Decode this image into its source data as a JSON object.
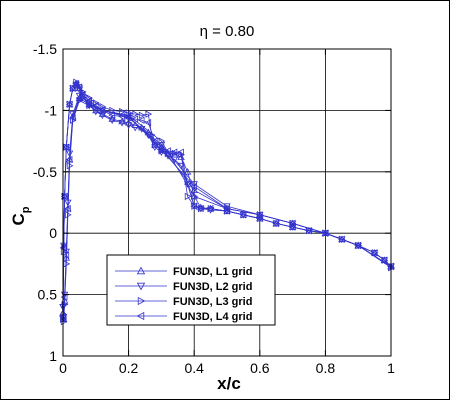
{
  "chart_data": {
    "type": "line",
    "title": "η = 0.80",
    "xlabel": "x/c",
    "ylabel": "C",
    "ylabel_subscript": "p",
    "xlim": [
      0,
      1
    ],
    "ylim": [
      1,
      -1.5
    ],
    "y_inverted": true,
    "grid": true,
    "legend_position": "bottom-left",
    "x_ticks": [
      "0",
      "0.2",
      "0.4",
      "0.6",
      "0.8",
      "1"
    ],
    "x_tick_values": [
      0,
      0.2,
      0.4,
      0.6,
      0.8,
      1
    ],
    "y_ticks": [
      "-1.5",
      "-1",
      "-0.5",
      "0",
      "0.5",
      "1"
    ],
    "y_tick_values": [
      -1.5,
      -1,
      -0.5,
      0,
      0.5,
      1
    ],
    "series_color": "#3333cc",
    "series": [
      {
        "name": "FUN3D, L1 grid",
        "marker": "triangle-up",
        "upper": {
          "x": [
            0,
            0.002,
            0.005,
            0.01,
            0.02,
            0.03,
            0.04,
            0.05,
            0.06,
            0.08,
            0.1,
            0.12,
            0.15,
            0.18,
            0.2,
            0.22,
            0.24,
            0.26,
            0.28,
            0.3,
            0.32,
            0.34,
            0.36,
            0.38,
            0.4,
            0.42,
            0.45,
            0.5,
            0.55,
            0.6,
            0.65,
            0.7,
            0.75,
            0.8,
            0.85,
            0.9,
            0.95,
            0.98,
            1.0
          ],
          "y": [
            0.65,
            0.1,
            -0.3,
            -0.7,
            -1.05,
            -1.18,
            -1.22,
            -1.18,
            -1.12,
            -1.05,
            -1.0,
            -0.97,
            -0.93,
            -0.91,
            -0.9,
            -0.88,
            -0.86,
            -0.82,
            -0.72,
            -0.68,
            -0.65,
            -0.64,
            -0.62,
            -0.5,
            -0.3,
            -0.21,
            -0.2,
            -0.18,
            -0.15,
            -0.12,
            -0.08,
            -0.05,
            -0.02,
            0.0,
            0.05,
            0.1,
            0.16,
            0.22,
            0.27
          ]
        },
        "lower": {
          "x": [
            0,
            0.002,
            0.005,
            0.01,
            0.015,
            0.02,
            0.03,
            0.05,
            0.08,
            0.12,
            0.2,
            0.3,
            0.4,
            0.5,
            0.6,
            0.7,
            0.8,
            0.9,
            1.0
          ],
          "y": [
            0.65,
            0.7,
            0.55,
            0.2,
            -0.2,
            -0.6,
            -0.95,
            -1.1,
            -1.05,
            -1.0,
            -0.95,
            -0.7,
            -0.35,
            -0.2,
            -0.15,
            -0.08,
            0.0,
            0.1,
            0.27
          ]
        }
      },
      {
        "name": "FUN3D, L2 grid",
        "marker": "triangle-down",
        "upper": {
          "x": [
            0,
            0.002,
            0.005,
            0.01,
            0.02,
            0.03,
            0.04,
            0.05,
            0.06,
            0.08,
            0.1,
            0.12,
            0.15,
            0.18,
            0.2,
            0.22,
            0.24,
            0.26,
            0.28,
            0.3,
            0.32,
            0.34,
            0.36,
            0.38,
            0.4,
            0.42,
            0.45,
            0.5,
            0.55,
            0.6,
            0.65,
            0.7,
            0.75,
            0.8,
            0.85,
            0.9,
            0.95,
            0.98,
            1.0
          ],
          "y": [
            0.6,
            0.1,
            -0.3,
            -0.7,
            -1.05,
            -1.18,
            -1.21,
            -1.17,
            -1.11,
            -1.04,
            -0.99,
            -0.96,
            -0.92,
            -0.9,
            -0.88,
            -0.86,
            -0.85,
            -0.8,
            -0.7,
            -0.66,
            -0.63,
            -0.6,
            -0.55,
            -0.4,
            -0.22,
            -0.2,
            -0.19,
            -0.18,
            -0.15,
            -0.12,
            -0.08,
            -0.05,
            -0.02,
            0.0,
            0.05,
            0.1,
            0.16,
            0.22,
            0.27
          ]
        },
        "lower": {
          "x": [
            0,
            0.002,
            0.005,
            0.01,
            0.015,
            0.02,
            0.03,
            0.05,
            0.08,
            0.12,
            0.2,
            0.3,
            0.4,
            0.5,
            0.6,
            0.7,
            0.8,
            0.9,
            1.0
          ],
          "y": [
            0.6,
            0.68,
            0.5,
            0.15,
            -0.25,
            -0.65,
            -0.97,
            -1.12,
            -1.06,
            -1.0,
            -0.94,
            -0.72,
            -0.4,
            -0.22,
            -0.15,
            -0.08,
            0.0,
            0.1,
            0.27
          ]
        }
      },
      {
        "name": "FUN3D, L3 grid",
        "marker": "triangle-right",
        "upper": {
          "x": [
            0,
            0.002,
            0.005,
            0.01,
            0.02,
            0.03,
            0.04,
            0.05,
            0.06,
            0.08,
            0.1,
            0.12,
            0.15,
            0.18,
            0.2,
            0.22,
            0.24,
            0.26,
            0.27,
            0.28,
            0.3,
            0.32,
            0.34,
            0.36,
            0.38,
            0.4,
            0.42,
            0.45,
            0.5,
            0.55,
            0.6,
            0.65,
            0.7,
            0.75,
            0.8,
            0.85,
            0.9,
            0.95,
            0.98,
            1.0
          ],
          "y": [
            0.7,
            0.15,
            -0.3,
            -0.7,
            -1.05,
            -1.18,
            -1.23,
            -1.2,
            -1.15,
            -1.1,
            -1.06,
            -1.03,
            -1.0,
            -0.99,
            -0.98,
            -0.97,
            -0.96,
            -0.97,
            -0.8,
            -0.72,
            -0.67,
            -0.65,
            -0.65,
            -0.64,
            -0.3,
            -0.22,
            -0.2,
            -0.2,
            -0.18,
            -0.15,
            -0.12,
            -0.08,
            -0.05,
            -0.02,
            0.0,
            0.05,
            0.1,
            0.16,
            0.22,
            0.28
          ]
        },
        "lower": {
          "x": [
            0,
            0.002,
            0.005,
            0.01,
            0.015,
            0.02,
            0.03,
            0.05,
            0.08,
            0.12,
            0.2,
            0.3,
            0.4,
            0.5,
            0.6,
            0.7,
            0.8,
            0.9,
            1.0
          ],
          "y": [
            0.7,
            0.72,
            0.58,
            0.25,
            -0.15,
            -0.55,
            -0.92,
            -1.08,
            -1.04,
            -1.0,
            -0.96,
            -0.75,
            -0.3,
            -0.2,
            -0.15,
            -0.08,
            0.0,
            0.1,
            0.28
          ]
        }
      },
      {
        "name": "FUN3D, L4 grid",
        "marker": "triangle-left",
        "upper": {
          "x": [
            0,
            0.002,
            0.005,
            0.01,
            0.02,
            0.03,
            0.04,
            0.05,
            0.06,
            0.08,
            0.1,
            0.12,
            0.15,
            0.18,
            0.2,
            0.22,
            0.24,
            0.26,
            0.28,
            0.3,
            0.32,
            0.34,
            0.36,
            0.38,
            0.4,
            0.42,
            0.45,
            0.5,
            0.55,
            0.6,
            0.65,
            0.7,
            0.75,
            0.8,
            0.85,
            0.9,
            0.95,
            0.98,
            1.0
          ],
          "y": [
            0.68,
            0.12,
            -0.3,
            -0.7,
            -1.05,
            -1.18,
            -1.22,
            -1.19,
            -1.13,
            -1.08,
            -1.04,
            -1.0,
            -0.96,
            -0.95,
            -0.94,
            -0.93,
            -0.92,
            -0.9,
            -0.75,
            -0.7,
            -0.67,
            -0.66,
            -0.66,
            -0.4,
            -0.22,
            -0.2,
            -0.2,
            -0.18,
            -0.15,
            -0.12,
            -0.08,
            -0.05,
            -0.02,
            0.0,
            0.05,
            0.1,
            0.16,
            0.22,
            0.27
          ]
        },
        "lower": {
          "x": [
            0,
            0.002,
            0.005,
            0.01,
            0.015,
            0.02,
            0.03,
            0.05,
            0.08,
            0.12,
            0.2,
            0.3,
            0.4,
            0.5,
            0.6,
            0.7,
            0.8,
            0.9,
            1.0
          ],
          "y": [
            0.68,
            0.7,
            0.52,
            0.18,
            -0.2,
            -0.6,
            -0.94,
            -1.1,
            -1.05,
            -1.0,
            -0.95,
            -0.68,
            -0.38,
            -0.2,
            -0.15,
            -0.08,
            0.0,
            0.1,
            0.27
          ]
        }
      }
    ]
  }
}
